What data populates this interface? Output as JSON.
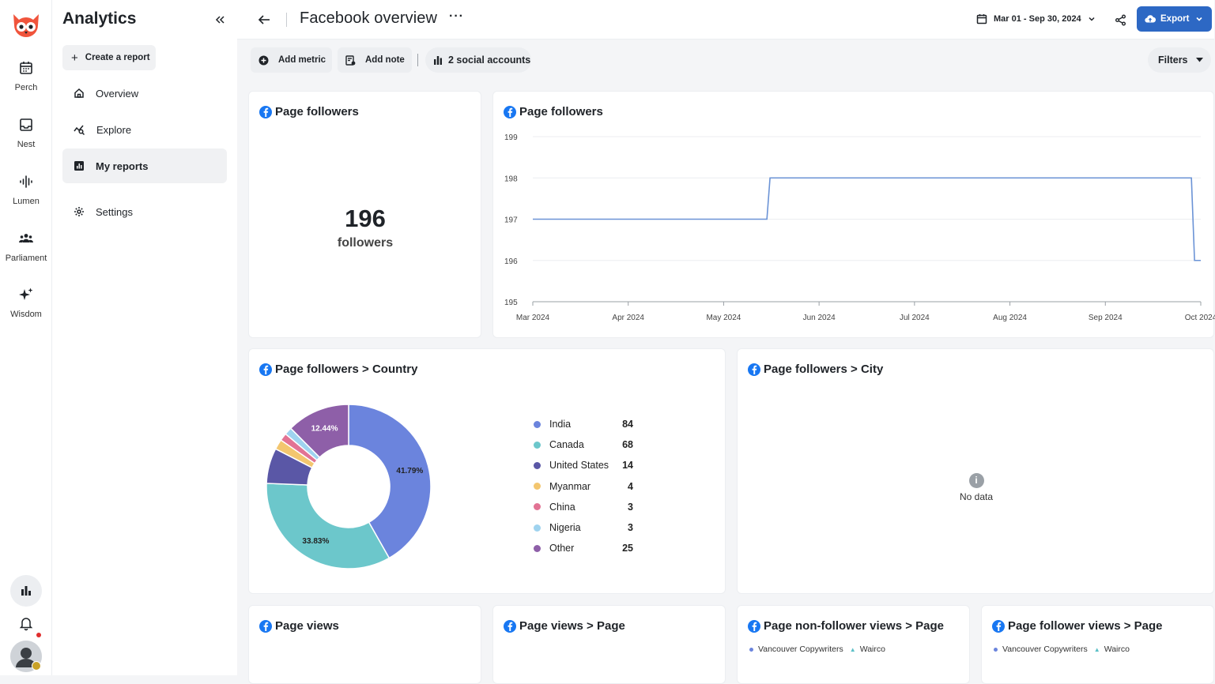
{
  "colors": {
    "accent": "#2d68c4",
    "facebook": "#1877f2",
    "line": "#6b93d6",
    "notification": "#e02d2d"
  },
  "rail": {
    "items": [
      {
        "label": "Perch",
        "icon": "calendar-icon"
      },
      {
        "label": "Nest",
        "icon": "inbox-icon"
      },
      {
        "label": "Lumen",
        "icon": "waveform-icon"
      },
      {
        "label": "Parliament",
        "icon": "people-icon"
      },
      {
        "label": "Wisdom",
        "icon": "sparkle-icon"
      }
    ],
    "bottom": [
      "analytics-icon",
      "bell-icon",
      "avatar"
    ]
  },
  "sidebar": {
    "title": "Analytics",
    "create_label": "Create a report",
    "nav": [
      {
        "label": "Overview",
        "icon": "home-icon"
      },
      {
        "label": "Explore",
        "icon": "explore-chart-icon"
      },
      {
        "label": "My reports",
        "icon": "report-icon",
        "active": true
      },
      {
        "label": "Settings",
        "icon": "gear-icon"
      }
    ]
  },
  "header": {
    "title": "Facebook overview",
    "more_label": "···",
    "date_range": "Mar 01 - Sep 30, 2024",
    "export_label": "Export"
  },
  "toolbar": {
    "add_metric": "Add metric",
    "add_note": "Add note",
    "accounts": "2 social accounts",
    "filters": "Filters"
  },
  "cards": {
    "followers_total": {
      "title": "Page followers",
      "value": "196",
      "unit": "followers"
    },
    "followers_trend": {
      "title": "Page followers"
    },
    "country": {
      "title": "Page followers > Country"
    },
    "city": {
      "title": "Page followers > City",
      "empty": "No data",
      "empty_icon": "i"
    },
    "views": {
      "title": "Page views"
    },
    "views_page": {
      "title": "Page views > Page"
    },
    "nonfollower_views": {
      "title": "Page non-follower views > Page",
      "legend": [
        "Vancouver Copywriters",
        "Wairco"
      ]
    },
    "follower_views": {
      "title": "Page follower views > Page",
      "legend": [
        "Vancouver Copywriters",
        "Wairco"
      ]
    }
  },
  "chart_data": [
    {
      "type": "line",
      "title": "Page followers",
      "x_ticks": [
        "Mar 2024",
        "Apr 2024",
        "May 2024",
        "Jun 2024",
        "Jul 2024",
        "Aug 2024",
        "Sep 2024",
        "Oct 2024"
      ],
      "y_ticks": [
        195,
        196,
        197,
        198,
        199
      ],
      "ylim": [
        195,
        199
      ],
      "xlim": [
        "2024-03-01",
        "2024-10-01"
      ],
      "series": [
        {
          "x": [
            "2024-03-01",
            "2024-05-15",
            "2024-05-16",
            "2024-09-28",
            "2024-09-29",
            "2024-10-01"
          ],
          "y": [
            197,
            197,
            198,
            198,
            196,
            196
          ]
        }
      ],
      "grid": true
    },
    {
      "type": "pie",
      "title": "Page followers > Country",
      "donut": true,
      "labels": [
        "India",
        "Canada",
        "United States",
        "Myanmar",
        "China",
        "Nigeria",
        "Other"
      ],
      "values": [
        84,
        68,
        14,
        4,
        3,
        3,
        25
      ],
      "colors": [
        "#6b84dd",
        "#6cc7cb",
        "#5a57a6",
        "#f3c66f",
        "#e27394",
        "#9fd3ef",
        "#8e5fa8"
      ],
      "slice_labels": [
        "41.79%",
        "33.83%",
        "",
        "",
        "",
        "",
        "12.44%"
      ]
    }
  ]
}
